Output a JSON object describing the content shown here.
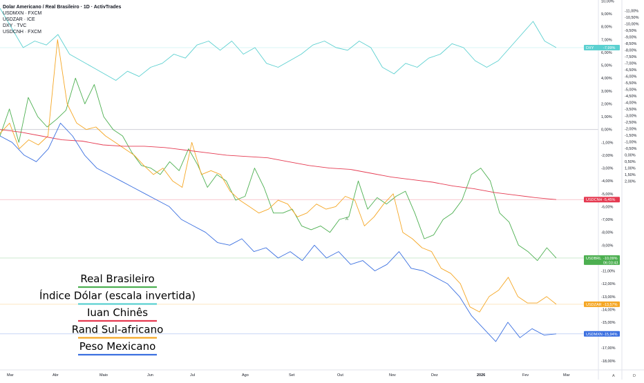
{
  "header": {
    "title": "Dolar Americano / Real Brasileiro · 1D · ActivTrades",
    "symbols": [
      "USDMXN · FXCM",
      "USDZAR · ICE",
      "DXY · TVC",
      "USDCNH · FXCM"
    ]
  },
  "chart_data": {
    "type": "line",
    "x_labels": [
      "Mar",
      "Abr",
      "Maio",
      "Jun",
      "Jul",
      "Ago",
      "Set",
      "Out",
      "Nov",
      "Dez",
      "2026",
      "Fev",
      "Mar"
    ],
    "x_bold": "2026",
    "left_axis": {
      "unit": "%",
      "labels": [
        "10,00%",
        "9,00%",
        "8,00%",
        "7,00%",
        "6,00%",
        "5,00%",
        "4,00%",
        "3,00%",
        "2,00%",
        "1,00%",
        "0,00%",
        "-1,00%",
        "-2,00%",
        "-3,00%",
        "-4,00%",
        "-5,00%",
        "-6,00%",
        "-7,00%",
        "-8,00%",
        "-9,00%",
        "-10,00%",
        "-11,00%",
        "-12,00%",
        "-13,00%",
        "-14,00%",
        "-15,00%",
        "-16,00%",
        "-17,00%",
        "-18,00%"
      ],
      "ylim": [
        -18,
        10
      ]
    },
    "right_axis": {
      "inverted": true,
      "labels": [
        "-11,00%",
        "-10,50%",
        "-10,00%",
        "-9,50%",
        "-9,00%",
        "-8,50%",
        "-8,00%",
        "-7,50%",
        "-7,00%",
        "-6,50%",
        "-6,00%",
        "-5,50%",
        "-5,00%",
        "-4,50%",
        "-4,00%",
        "-3,50%",
        "-3,00%",
        "-2,50%",
        "-2,00%",
        "-1,50%",
        "-1,00%",
        "-0,50%",
        "0,00%",
        "0,50%",
        "1,00%",
        "1,50%",
        "2,00%"
      ],
      "ylim": [
        2.1,
        -11.2
      ]
    },
    "series": [
      {
        "symbol": "USDBRL",
        "color": "#4caf50",
        "last": "-10,09%",
        "timer": "06:03:43",
        "values": [
          -0.5,
          1.6,
          -1.0,
          2.5,
          1.0,
          0.2,
          0.8,
          1.5,
          4.0,
          2.0,
          3.5,
          1.0,
          0.0,
          -0.5,
          -1.8,
          -2.8,
          -3.0,
          -3.5,
          -2.5,
          -3.2,
          -1.5,
          -2.8,
          -4.5,
          -3.5,
          -4.0,
          -5.5,
          -5.2,
          -3.0,
          -4.5,
          -6.5,
          -6.5,
          -6.2,
          -7.5,
          -7.8,
          -7.5,
          -8.0,
          -7.0,
          -6.8,
          -4.0,
          -6.2,
          -5.3,
          -5.8,
          -5.2,
          -4.8,
          -6.5,
          -8.5,
          -8.2,
          -7.0,
          -6.5,
          -5.5,
          -3.5,
          -3.0,
          -4.0,
          -6.5,
          -7.2,
          -9.0,
          -9.5,
          -10.2,
          -9.2,
          -10.0
        ]
      },
      {
        "symbol": "USDZAR",
        "color": "#f5a623",
        "last": "-13,57%",
        "timer": "",
        "values": [
          -0.3,
          0.5,
          -1.5,
          -0.8,
          -1.2,
          -0.5,
          7.0,
          2.0,
          0.5,
          0.0,
          0.2,
          -0.5,
          -1.0,
          -1.5,
          -2.0,
          -2.8,
          -3.5,
          -3.0,
          -4.0,
          -4.5,
          -1.0,
          -3.5,
          -3.2,
          -3.5,
          -4.8,
          -5.5,
          -6.0,
          -6.5,
          -6.2,
          -5.5,
          -5.8,
          -6.8,
          -6.5,
          -5.8,
          -6.2,
          -6.0,
          -5.2,
          -5.5,
          -7.5,
          -6.8,
          -5.8,
          -5.0,
          -8.0,
          -8.5,
          -9.2,
          -9.5,
          -10.8,
          -11.2,
          -12.0,
          -13.8,
          -14.2,
          -13.0,
          -12.5,
          -11.5,
          -13.0,
          -13.5,
          -13.5,
          -13.0,
          -13.6
        ]
      },
      {
        "symbol": "USDCNH",
        "color": "#e53950",
        "last": "-5,45%",
        "timer": "",
        "values": [
          0.0,
          -0.2,
          -0.5,
          -0.8,
          -0.9,
          -1.2,
          -1.3,
          -1.3,
          -1.4,
          -1.6,
          -1.8,
          -2.0,
          -2.1,
          -2.2,
          -2.5,
          -2.8,
          -3.0,
          -3.1,
          -3.4,
          -3.7,
          -3.9,
          -4.1,
          -4.4,
          -4.6,
          -4.9,
          -5.1,
          -5.3,
          -5.45
        ]
      },
      {
        "symbol": "USDMXN",
        "color": "#3a6fe0",
        "last": "-15,94%",
        "timer": "",
        "values": [
          -0.5,
          -1.0,
          -2.0,
          -2.5,
          -1.5,
          0.5,
          -0.5,
          -2.0,
          -3.0,
          -3.5,
          -4.0,
          -4.5,
          -5.0,
          -5.5,
          -6.0,
          -7.0,
          -7.5,
          -8.0,
          -8.8,
          -9.0,
          -8.5,
          -9.5,
          -9.2,
          -10.0,
          -9.5,
          -10.2,
          -9.0,
          -10.0,
          -9.5,
          -10.5,
          -10.2,
          -11.0,
          -10.5,
          -9.5,
          -10.8,
          -11.0,
          -11.5,
          -12.0,
          -13.0,
          -14.5,
          -15.5,
          -16.5,
          -15.0,
          -16.2,
          -15.5,
          -16.0,
          -15.9
        ]
      },
      {
        "symbol": "DXY",
        "color": "#5bd0d0",
        "last": "-7,99%",
        "timer": "",
        "values": [
          -11.0,
          -9.5,
          -8.0,
          -8.5,
          -8.2,
          -9.0,
          -7.5,
          -7.0,
          -6.5,
          -6.0,
          -5.5,
          -6.2,
          -5.8,
          -6.5,
          -6.8,
          -7.5,
          -7.2,
          -8.2,
          -8.5,
          -7.8,
          -8.5,
          -7.5,
          -8.0,
          -6.8,
          -6.5,
          -7.0,
          -7.5,
          -8.2,
          -8.5,
          -8.0,
          -7.8,
          -8.5,
          -8.0,
          -6.5,
          -6.0,
          -6.8,
          -6.5,
          -7.2,
          -7.5,
          -8.3,
          -8.0,
          -7.0,
          -6.5,
          -7.0,
          -8.0,
          -9.0,
          -10.0,
          -8.5,
          -8.0
        ]
      }
    ],
    "legend": [
      "Real Brasileiro",
      "Índice Dólar (escala invertida)",
      "Iuan Chinês",
      "Rand Sul-africano",
      "Peso Mexicano"
    ],
    "legend_colors": [
      "#4caf50",
      "#5bd0d0",
      "#e53950",
      "#f5a623",
      "#3a6fe0"
    ],
    "annotation": "A",
    "scale_buttons": [
      "A",
      "D"
    ]
  }
}
